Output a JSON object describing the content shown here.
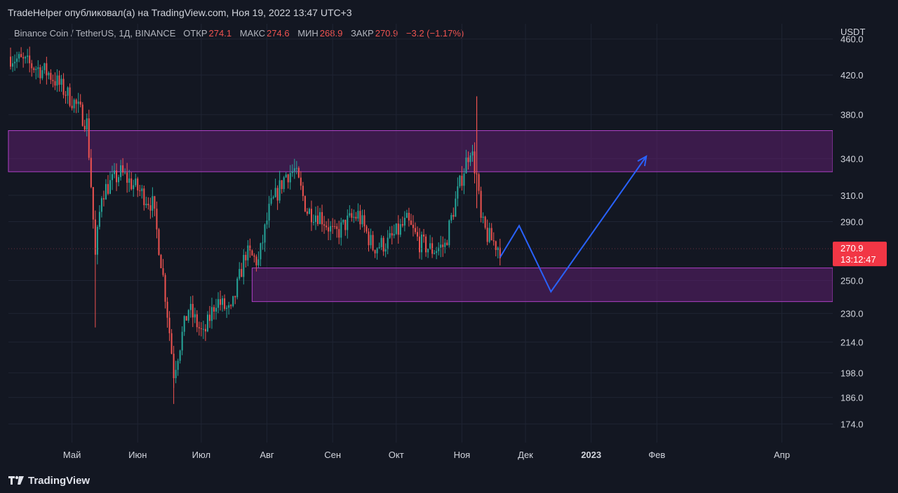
{
  "header": {
    "title": "TradeHelper опубликовал(а) на TradingView.com, Ноя 19, 2022 13:47 UTC+3"
  },
  "legend": {
    "symbol": "Binance Coin / TetherUS, 1Д, BINANCE",
    "open_label": "ОТКР",
    "open": "274.1",
    "high_label": "МАКС",
    "high": "274.6",
    "low_label": "МИН",
    "low": "268.9",
    "close_label": "ЗАКР",
    "close": "270.9",
    "change": "−3.2 (−1.17%)"
  },
  "colors": {
    "background": "#131722",
    "up": "#26a69a",
    "down": "#ef5350",
    "zone_fill": "#5c1f6e",
    "zone_border": "#b040c8",
    "projection": "#2962ff",
    "price_tag": "#f23645"
  },
  "footer": {
    "brand": "TradingView",
    "logo_icon": "tradingview-logo-icon"
  },
  "chart_data": {
    "type": "candlestick",
    "symbol": "Binance Coin / TetherUS",
    "interval": "1Д",
    "exchange": "BINANCE",
    "currency_label": "USDT",
    "y_scale": "log",
    "ylim": [
      166,
      478
    ],
    "y_ticks": [
      "460.0",
      "420.0",
      "380.0",
      "340.0",
      "310.0",
      "290.0",
      "250.0",
      "230.0",
      "214.0",
      "198.0",
      "186.0",
      "174.0"
    ],
    "x_ticks": [
      {
        "label": "Май",
        "date": "2022-05-01"
      },
      {
        "label": "Июн",
        "date": "2022-06-01"
      },
      {
        "label": "Июл",
        "date": "2022-07-01"
      },
      {
        "label": "Авг",
        "date": "2022-08-01"
      },
      {
        "label": "Сен",
        "date": "2022-09-01"
      },
      {
        "label": "Окт",
        "date": "2022-10-01"
      },
      {
        "label": "Ноя",
        "date": "2022-11-01"
      },
      {
        "label": "Дек",
        "date": "2022-12-01"
      },
      {
        "label": "2023",
        "date": "2023-01-01",
        "bold": true
      },
      {
        "label": "Фев",
        "date": "2023-02-01"
      },
      {
        "label": "Апр",
        "date": "2023-04-01"
      }
    ],
    "last_price": "270.9",
    "countdown": "13:12:47",
    "zones": [
      {
        "name": "resistance",
        "from": 329,
        "to": 365
      },
      {
        "name": "support",
        "from": 237,
        "to": 258
      }
    ],
    "projection": [
      {
        "date": "2022-11-19",
        "price": 265
      },
      {
        "date": "2022-11-28",
        "price": 287
      },
      {
        "date": "2022-12-13",
        "price": 243
      },
      {
        "date": "2023-01-27",
        "price": 342
      }
    ],
    "trend": [
      {
        "date": "2022-04-02",
        "price": 440
      },
      {
        "date": "2022-04-20",
        "price": 422
      },
      {
        "date": "2022-05-02",
        "price": 392
      },
      {
        "date": "2022-05-08",
        "price": 372
      },
      {
        "date": "2022-05-12",
        "price": 265
      },
      {
        "date": "2022-05-15",
        "price": 312
      },
      {
        "date": "2022-05-24",
        "price": 328
      },
      {
        "date": "2022-05-30",
        "price": 318
      },
      {
        "date": "2022-06-08",
        "price": 303
      },
      {
        "date": "2022-06-12",
        "price": 263
      },
      {
        "date": "2022-06-18",
        "price": 198
      },
      {
        "date": "2022-06-25",
        "price": 233
      },
      {
        "date": "2022-07-02",
        "price": 217
      },
      {
        "date": "2022-07-08",
        "price": 238
      },
      {
        "date": "2022-07-15",
        "price": 230
      },
      {
        "date": "2022-07-22",
        "price": 268
      },
      {
        "date": "2022-07-28",
        "price": 262
      },
      {
        "date": "2022-08-02",
        "price": 298
      },
      {
        "date": "2022-08-10",
        "price": 327
      },
      {
        "date": "2022-08-14",
        "price": 330
      },
      {
        "date": "2022-08-20",
        "price": 298
      },
      {
        "date": "2022-08-26",
        "price": 295
      },
      {
        "date": "2022-09-02",
        "price": 280
      },
      {
        "date": "2022-09-08",
        "price": 290
      },
      {
        "date": "2022-09-13",
        "price": 295
      },
      {
        "date": "2022-09-20",
        "price": 272
      },
      {
        "date": "2022-09-27",
        "price": 275
      },
      {
        "date": "2022-10-06",
        "price": 290
      },
      {
        "date": "2022-10-12",
        "price": 275
      },
      {
        "date": "2022-10-18",
        "price": 270
      },
      {
        "date": "2022-10-24",
        "price": 273
      },
      {
        "date": "2022-11-01",
        "price": 325
      },
      {
        "date": "2022-11-05",
        "price": 350
      },
      {
        "date": "2022-11-08",
        "price": 325
      },
      {
        "date": "2022-11-10",
        "price": 290
      },
      {
        "date": "2022-11-13",
        "price": 280
      },
      {
        "date": "2022-11-19",
        "price": 270.9
      }
    ]
  }
}
